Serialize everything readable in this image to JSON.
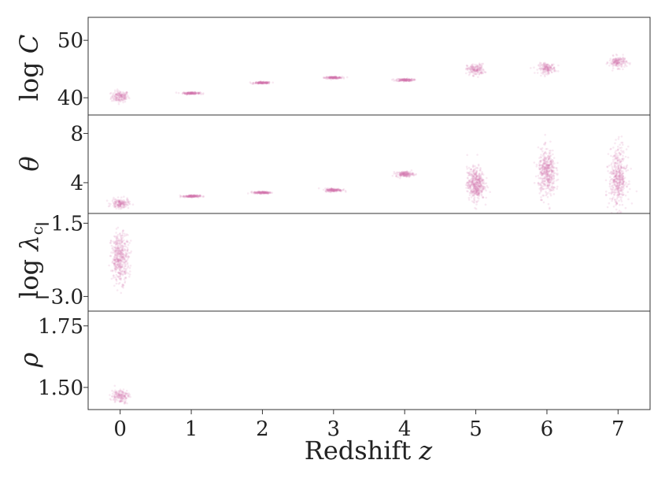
{
  "colors": {
    "marker": "#d279ad",
    "axis": "#333333",
    "text": "#222222",
    "background": "#ffffff"
  },
  "chart_data": [
    {
      "type": "scatter",
      "panel": "logC",
      "ylabel": "log C",
      "ylim": [
        37,
        54
      ],
      "yticks": [
        {
          "value": 40,
          "label": "40"
        },
        {
          "value": 50,
          "label": "50"
        }
      ],
      "x": [
        0,
        1,
        2,
        3,
        4,
        5,
        6,
        7
      ],
      "y_center": [
        40.2,
        40.8,
        42.6,
        43.5,
        43.1,
        44.9,
        45.1,
        46.2
      ],
      "y_spread": [
        0.9,
        0.15,
        0.15,
        0.15,
        0.2,
        0.9,
        0.8,
        0.9
      ],
      "show_x_ticks": false
    },
    {
      "type": "scatter",
      "panel": "theta",
      "ylabel": "θ",
      "ylim": [
        1.5,
        9.5
      ],
      "yticks": [
        {
          "value": 4,
          "label": "4"
        },
        {
          "value": 8,
          "label": "8"
        }
      ],
      "x": [
        0,
        1,
        2,
        3,
        4,
        5,
        6,
        7
      ],
      "y_center": [
        2.3,
        2.9,
        3.2,
        3.4,
        4.7,
        3.9,
        4.8,
        4.4
      ],
      "y_spread": [
        0.35,
        0.08,
        0.08,
        0.12,
        0.2,
        1.2,
        1.7,
        2.2
      ],
      "show_x_ticks": false
    },
    {
      "type": "scatter",
      "panel": "lambda_c",
      "ylabel": "log λc",
      "ylim": [
        -3.3,
        -1.3
      ],
      "yticks": [
        {
          "value": -1.5,
          "label": "−1.5"
        },
        {
          "value": -3.0,
          "label": "−3.0"
        }
      ],
      "x": [
        0
      ],
      "y_center": [
        -2.2
      ],
      "y_spread": [
        0.45
      ],
      "show_x_ticks": false
    },
    {
      "type": "scatter",
      "panel": "rho",
      "ylabel": "ρ",
      "ylim": [
        1.41,
        1.81
      ],
      "yticks": [
        {
          "value": 1.5,
          "label": "1.50"
        },
        {
          "value": 1.75,
          "label": "1.75"
        }
      ],
      "x": [
        0
      ],
      "y_center": [
        1.465
      ],
      "y_spread": [
        0.025
      ],
      "show_x_ticks": true
    }
  ],
  "xaxis": {
    "label": "Redshift z",
    "xlim": [
      -0.45,
      7.45
    ],
    "ticks": [
      {
        "value": 0,
        "label": "0"
      },
      {
        "value": 1,
        "label": "1"
      },
      {
        "value": 2,
        "label": "2"
      },
      {
        "value": 3,
        "label": "3"
      },
      {
        "value": 4,
        "label": "4"
      },
      {
        "value": 5,
        "label": "5"
      },
      {
        "value": 6,
        "label": "6"
      },
      {
        "value": 7,
        "label": "7"
      }
    ]
  }
}
